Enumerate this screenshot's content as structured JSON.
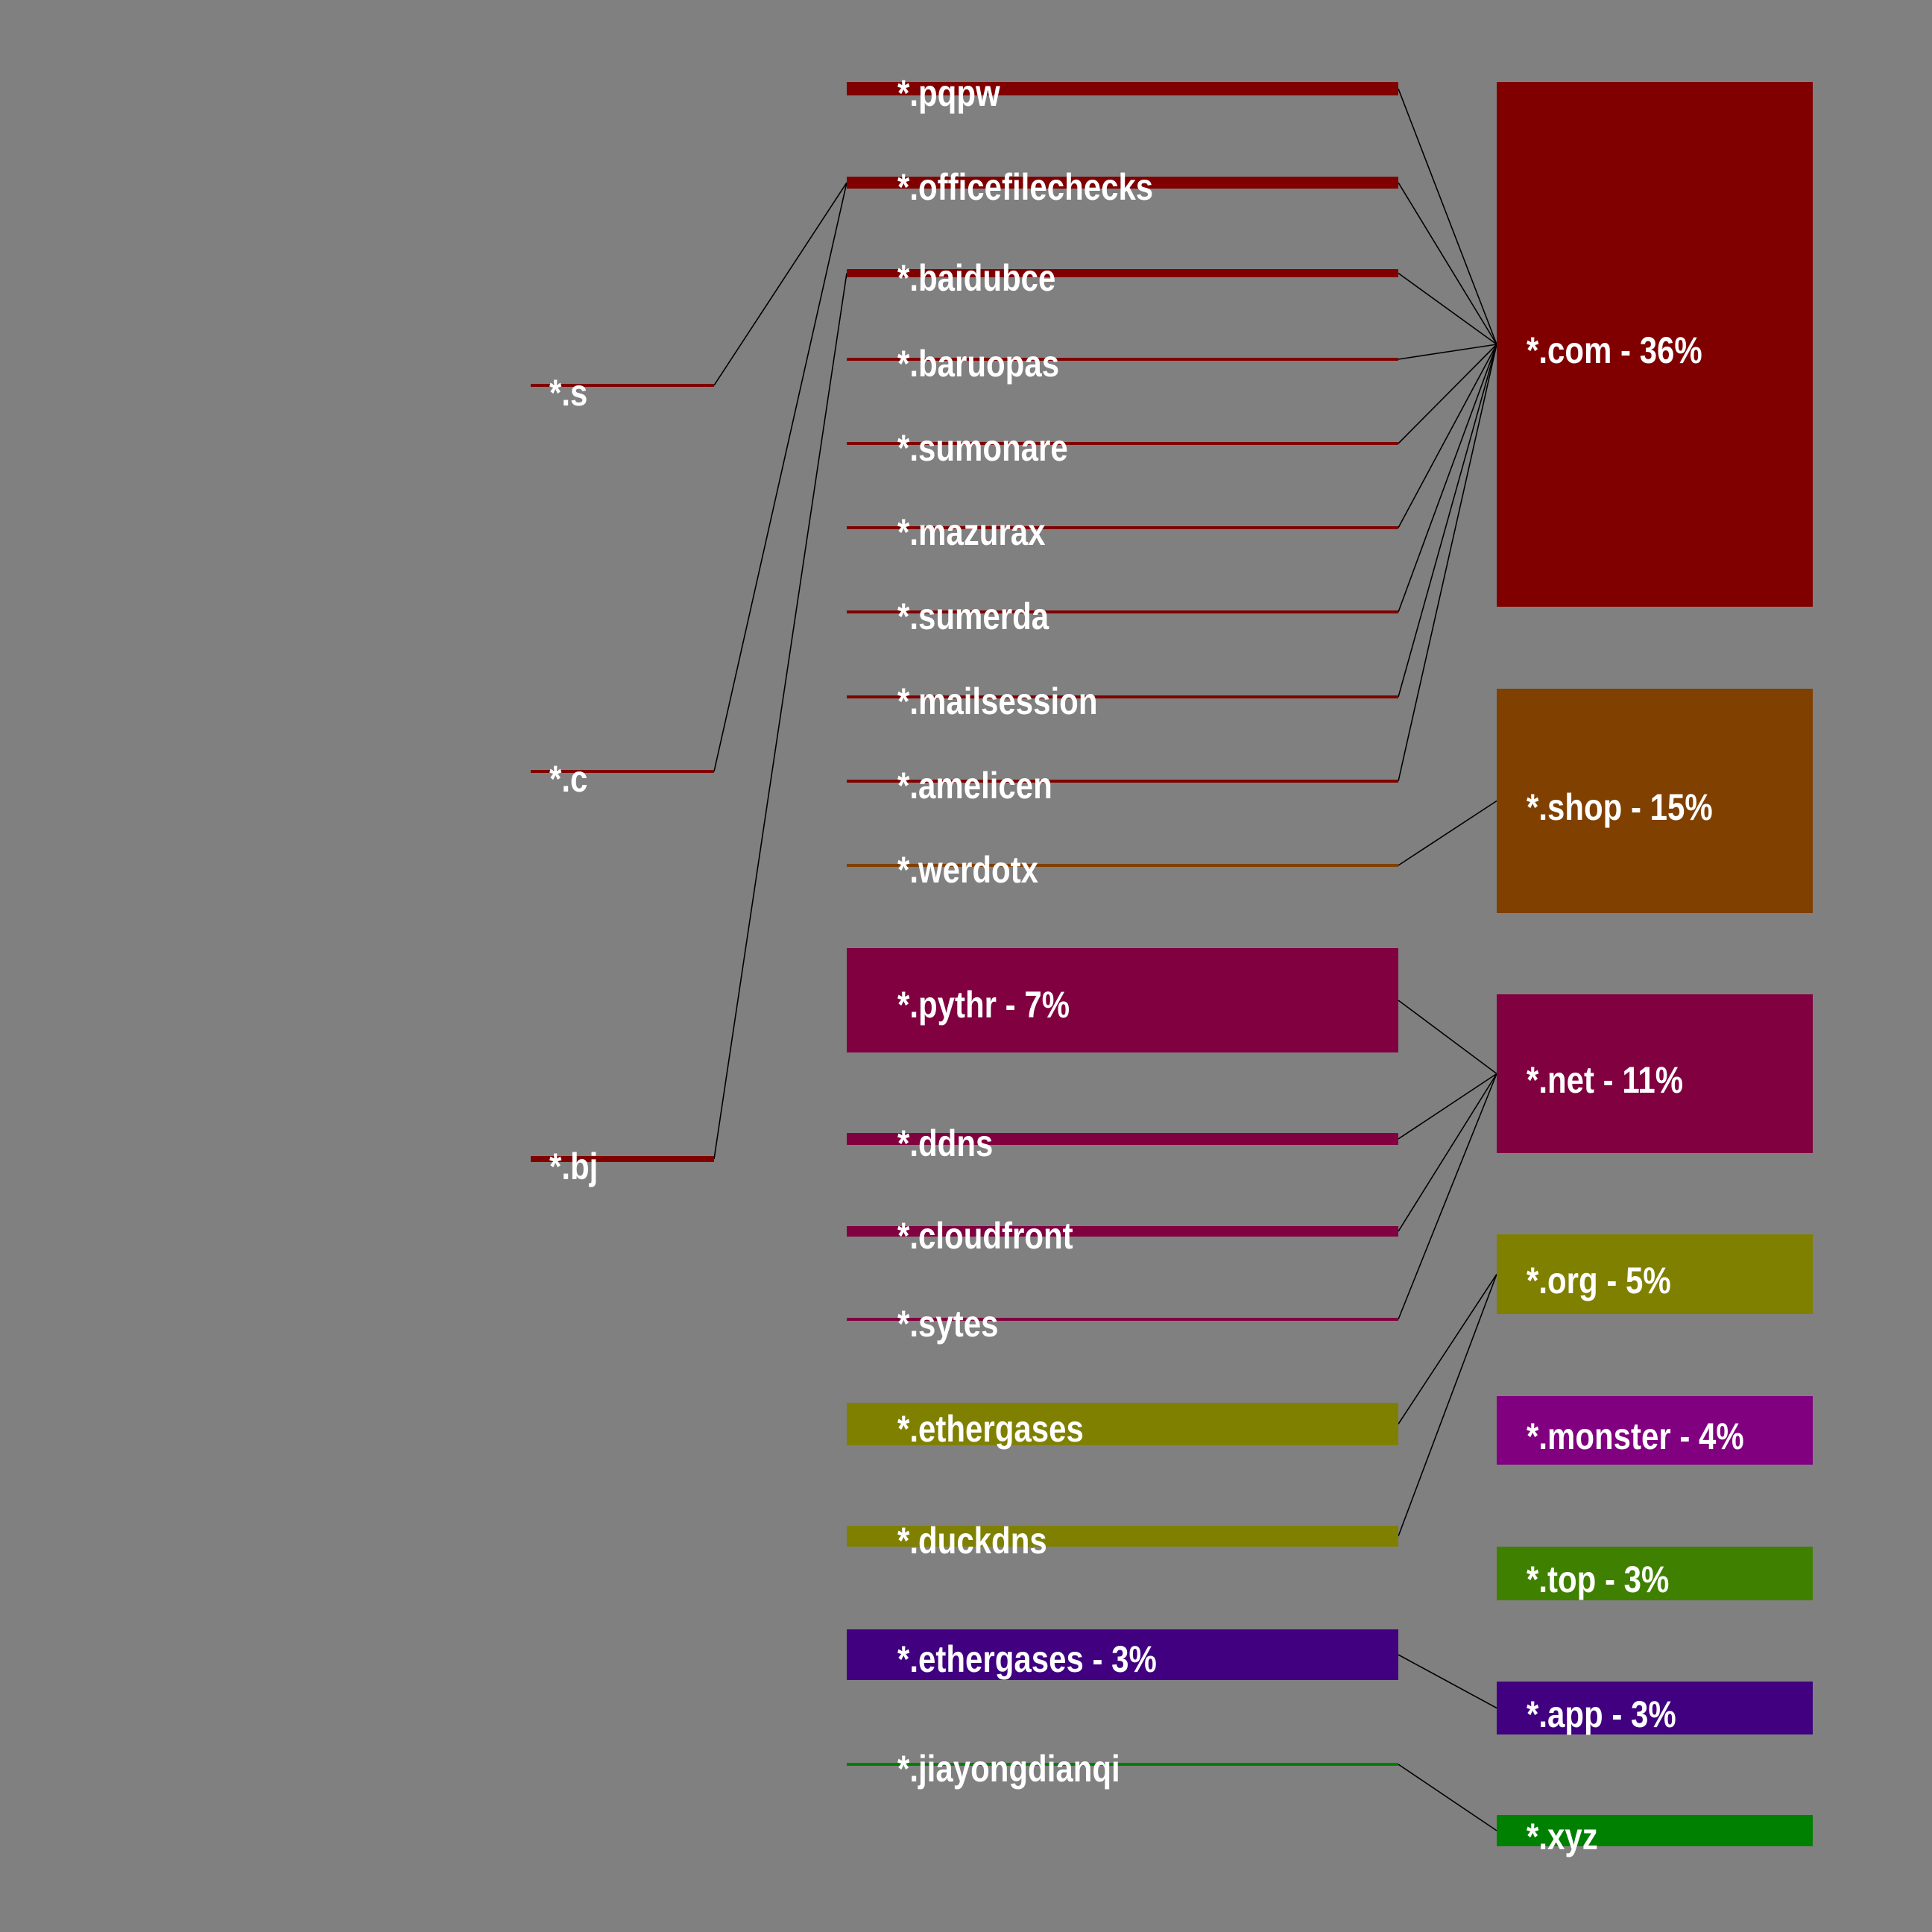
{
  "diagram": {
    "tlds": [
      {
        "id": "com",
        "label": "*.com - 36%",
        "color": "#800000"
      },
      {
        "id": "shop",
        "label": "*.shop - 15%",
        "color": "#804000"
      },
      {
        "id": "net",
        "label": "*.net - 11%",
        "color": "#800040"
      },
      {
        "id": "org",
        "label": "*.org - 5%",
        "color": "#808000"
      },
      {
        "id": "monster",
        "label": "*.monster - 4%",
        "color": "#800080"
      },
      {
        "id": "top",
        "label": "*.top - 3%",
        "color": "#408000"
      },
      {
        "id": "app",
        "label": "*.app - 3%",
        "color": "#400080"
      },
      {
        "id": "xyz",
        "label": "*.xyz",
        "color": "#008000"
      }
    ],
    "domains": [
      {
        "id": "pqpw",
        "label": "*.pqpw",
        "tld": "com",
        "color": "#800000"
      },
      {
        "id": "officefilechecks",
        "label": "*.officefilechecks",
        "tld": "com",
        "color": "#800000"
      },
      {
        "id": "baidubce",
        "label": "*.baidubce",
        "tld": "com",
        "color": "#800000"
      },
      {
        "id": "baruopas",
        "label": "*.baruopas",
        "tld": "com",
        "color": "#800000"
      },
      {
        "id": "sumonare",
        "label": "*.sumonare",
        "tld": "com",
        "color": "#800000"
      },
      {
        "id": "mazurax",
        "label": "*.mazurax",
        "tld": "com",
        "color": "#800000"
      },
      {
        "id": "sumerda",
        "label": "*.sumerda",
        "tld": "com",
        "color": "#800000"
      },
      {
        "id": "mailsession",
        "label": "*.mailsession",
        "tld": "com",
        "color": "#800000"
      },
      {
        "id": "amelicen",
        "label": "*.amelicen",
        "tld": "com",
        "color": "#800000"
      },
      {
        "id": "werdotx",
        "label": "*.werdotx",
        "tld": "shop",
        "color": "#804000"
      },
      {
        "id": "pythr",
        "label": "*.pythr - 7%",
        "tld": "net",
        "color": "#800040"
      },
      {
        "id": "ddns",
        "label": "*.ddns",
        "tld": "net",
        "color": "#800040"
      },
      {
        "id": "cloudfront",
        "label": "*.cloudfront",
        "tld": "net",
        "color": "#800040"
      },
      {
        "id": "sytes",
        "label": "*.sytes",
        "tld": "net",
        "color": "#800040"
      },
      {
        "id": "ethergases-org",
        "label": "*.ethergases",
        "tld": "org",
        "color": "#808000"
      },
      {
        "id": "duckdns",
        "label": "*.duckdns",
        "tld": "org",
        "color": "#808000"
      },
      {
        "id": "ethergases-app",
        "label": "*.ethergases - 3%",
        "tld": "app",
        "color": "#400080"
      },
      {
        "id": "jiayongdianqi",
        "label": "*.jiayongdianqi",
        "tld": "xyz",
        "color": "#008000"
      }
    ],
    "subdomains": [
      {
        "id": "s",
        "label": "*.s",
        "parent": "officefilechecks",
        "color": "#800000"
      },
      {
        "id": "c",
        "label": "*.c",
        "parent": "officefilechecks",
        "color": "#800000"
      },
      {
        "id": "bj",
        "label": "*.bj",
        "parent": "baidubce",
        "color": "#800000"
      }
    ]
  }
}
